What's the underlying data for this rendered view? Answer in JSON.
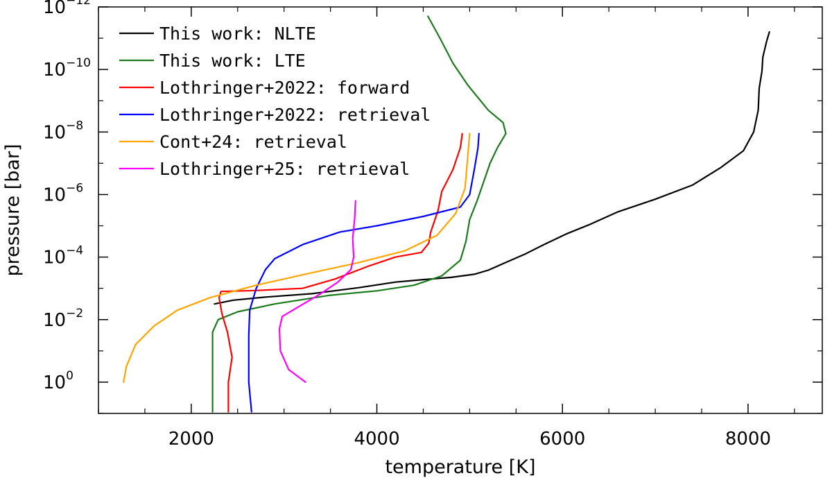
{
  "chart_data": {
    "type": "line",
    "xlabel": "temperature [K]",
    "ylabel": "pressure [bar]",
    "xlim": [
      1000,
      8800
    ],
    "ylim_log10": [
      1,
      -12
    ],
    "y_scale": "log, inverted (pressure decreases upward)",
    "x_ticks": [
      {
        "value": 2000,
        "label": "2000"
      },
      {
        "value": 4000,
        "label": "4000"
      },
      {
        "value": 6000,
        "label": "6000"
      },
      {
        "value": 8000,
        "label": "8000"
      }
    ],
    "y_ticks": [
      {
        "exp": 0,
        "base": "10",
        "power": "0"
      },
      {
        "exp": -2,
        "base": "10",
        "power": "−2"
      },
      {
        "exp": -4,
        "base": "10",
        "power": "−4"
      },
      {
        "exp": -6,
        "base": "10",
        "power": "−6"
      },
      {
        "exp": -8,
        "base": "10",
        "power": "−8"
      },
      {
        "exp": -10,
        "base": "10",
        "power": "−10"
      },
      {
        "exp": -12,
        "base": "10",
        "power": "−12"
      }
    ],
    "grid": false,
    "legend_position": "top-left",
    "series": [
      {
        "name": "This work: NLTE",
        "color": "#000000",
        "points": [
          [
            2250,
            -2.5
          ],
          [
            2450,
            -2.62
          ],
          [
            2800,
            -2.72
          ],
          [
            3300,
            -2.83
          ],
          [
            3800,
            -3.02
          ],
          [
            4200,
            -3.2
          ],
          [
            4500,
            -3.28
          ],
          [
            4800,
            -3.35
          ],
          [
            5050,
            -3.45
          ],
          [
            5200,
            -3.58
          ],
          [
            5400,
            -3.84
          ],
          [
            5600,
            -4.1
          ],
          [
            5800,
            -4.4
          ],
          [
            6050,
            -4.75
          ],
          [
            6300,
            -5.05
          ],
          [
            6600,
            -5.45
          ],
          [
            7000,
            -5.85
          ],
          [
            7400,
            -6.3
          ],
          [
            7700,
            -6.85
          ],
          [
            7950,
            -7.4
          ],
          [
            8060,
            -8.0
          ],
          [
            8110,
            -8.7
          ],
          [
            8120,
            -9.4
          ],
          [
            8150,
            -9.95
          ],
          [
            8160,
            -10.4
          ],
          [
            8200,
            -10.9
          ],
          [
            8230,
            -11.2
          ]
        ]
      },
      {
        "name": "This work: LTE",
        "color": "#1a7a1a",
        "points": [
          [
            2230,
            0.95
          ],
          [
            2230,
            -1.6
          ],
          [
            2290,
            -2.0
          ],
          [
            2500,
            -2.25
          ],
          [
            2900,
            -2.5
          ],
          [
            3500,
            -2.78
          ],
          [
            4000,
            -2.92
          ],
          [
            4400,
            -3.1
          ],
          [
            4700,
            -3.4
          ],
          [
            4900,
            -3.9
          ],
          [
            4960,
            -4.5
          ],
          [
            5000,
            -5.2
          ],
          [
            5080,
            -5.8
          ],
          [
            5150,
            -6.4
          ],
          [
            5220,
            -7.0
          ],
          [
            5300,
            -7.5
          ],
          [
            5390,
            -7.95
          ],
          [
            5360,
            -8.3
          ],
          [
            5200,
            -8.7
          ],
          [
            4980,
            -9.5
          ],
          [
            4820,
            -10.2
          ],
          [
            4680,
            -11.0
          ],
          [
            4550,
            -11.7
          ]
        ]
      },
      {
        "name": "Lothringer+2022: forward",
        "color": "#ff0000",
        "points": [
          [
            2400,
            0.95
          ],
          [
            2400,
            0.0
          ],
          [
            2440,
            -0.8
          ],
          [
            2390,
            -1.6
          ],
          [
            2330,
            -2.2
          ],
          [
            2300,
            -2.7
          ],
          [
            2320,
            -2.9
          ],
          [
            2700,
            -2.93
          ],
          [
            3200,
            -3.0
          ],
          [
            3550,
            -3.3
          ],
          [
            3900,
            -3.7
          ],
          [
            4200,
            -4.0
          ],
          [
            4480,
            -4.15
          ],
          [
            4560,
            -4.45
          ],
          [
            4580,
            -4.8
          ],
          [
            4660,
            -5.5
          ],
          [
            4700,
            -6.1
          ],
          [
            4820,
            -6.8
          ],
          [
            4900,
            -7.5
          ],
          [
            4920,
            -7.95
          ]
        ]
      },
      {
        "name": "Lothringer+2022: retrieval",
        "color": "#0000ff",
        "points": [
          [
            2650,
            0.95
          ],
          [
            2620,
            0.0
          ],
          [
            2620,
            -1.5
          ],
          [
            2630,
            -2.3
          ],
          [
            2700,
            -3.0
          ],
          [
            2800,
            -3.6
          ],
          [
            2900,
            -3.95
          ],
          [
            3200,
            -4.4
          ],
          [
            3600,
            -4.8
          ],
          [
            4000,
            -5.0
          ],
          [
            4500,
            -5.3
          ],
          [
            4900,
            -5.6
          ],
          [
            5000,
            -6.0
          ],
          [
            5050,
            -6.8
          ],
          [
            5090,
            -7.5
          ],
          [
            5100,
            -7.95
          ]
        ]
      },
      {
        "name": "Cont+24: retrieval",
        "color": "#ffa500",
        "points": [
          [
            1270,
            0.0
          ],
          [
            1300,
            -0.5
          ],
          [
            1400,
            -1.2
          ],
          [
            1600,
            -1.8
          ],
          [
            1850,
            -2.3
          ],
          [
            2200,
            -2.7
          ],
          [
            2700,
            -3.1
          ],
          [
            3300,
            -3.5
          ],
          [
            3800,
            -3.82
          ],
          [
            4300,
            -4.2
          ],
          [
            4650,
            -4.7
          ],
          [
            4850,
            -5.4
          ],
          [
            4950,
            -6.2
          ],
          [
            5000,
            -7.95
          ]
        ]
      },
      {
        "name": "Lothringer+25: retrieval",
        "color": "#ff00ff",
        "points": [
          [
            3230,
            0.0
          ],
          [
            3050,
            -0.4
          ],
          [
            2960,
            -1.0
          ],
          [
            2950,
            -1.7
          ],
          [
            2980,
            -2.1
          ],
          [
            3150,
            -2.4
          ],
          [
            3380,
            -2.8
          ],
          [
            3580,
            -3.2
          ],
          [
            3720,
            -3.6
          ],
          [
            3750,
            -4.0
          ],
          [
            3740,
            -4.6
          ],
          [
            3760,
            -5.2
          ],
          [
            3770,
            -5.8
          ]
        ]
      }
    ]
  }
}
